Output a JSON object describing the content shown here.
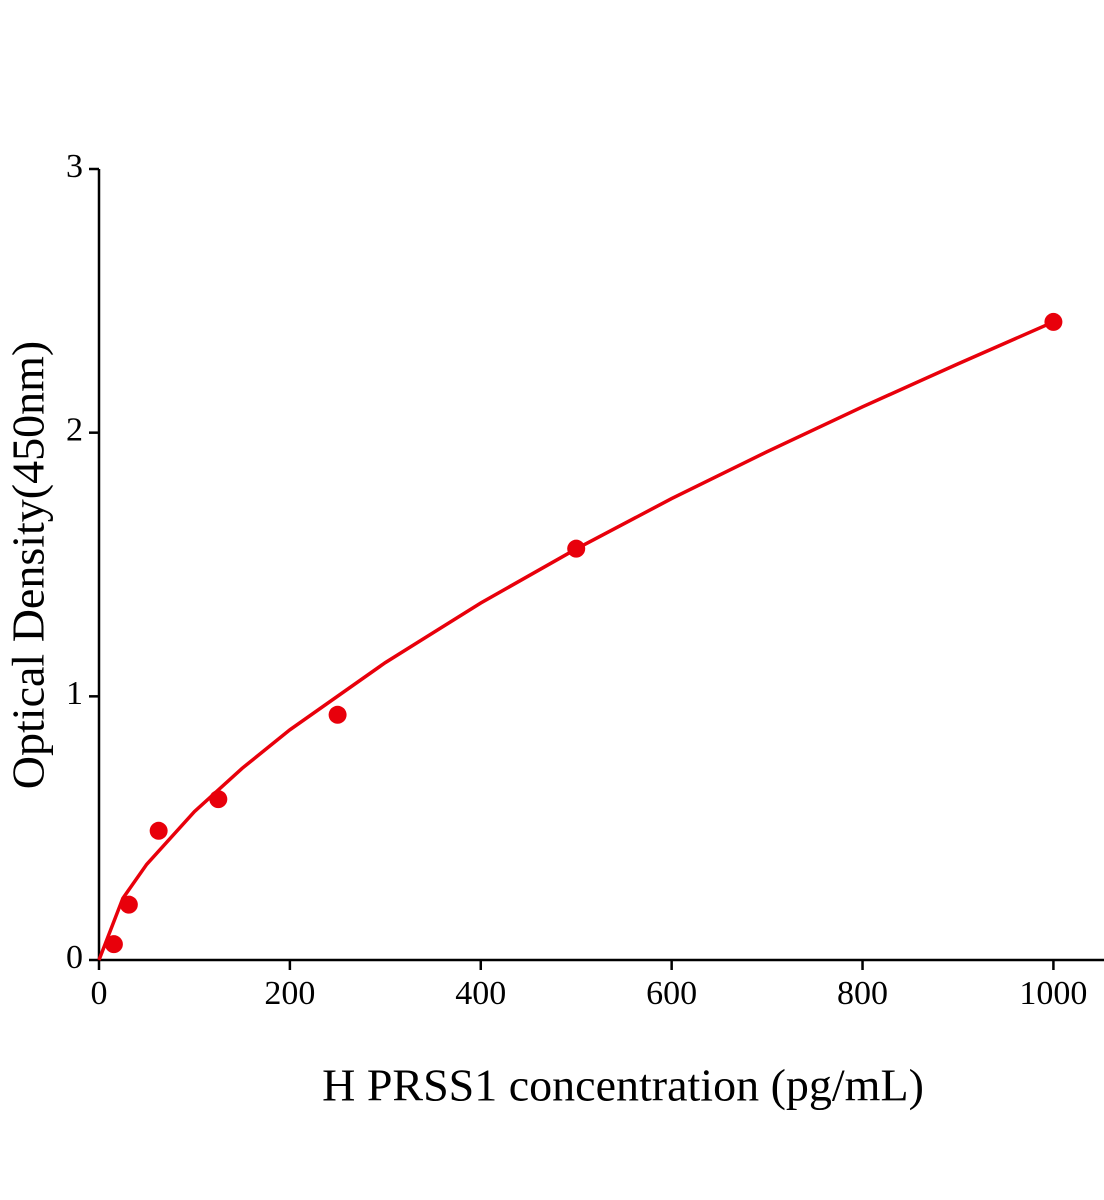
{
  "chart_data": {
    "type": "scatter",
    "x_label": "H PRSS1 concentration (pg/mL)",
    "y_label": "Optical Density(450nm)",
    "color": "#e8000b",
    "x": [
      15.6,
      31.25,
      62.5,
      125,
      250,
      500,
      1000
    ],
    "values": [
      0.06,
      0.21,
      0.49,
      0.61,
      0.93,
      1.56,
      2.42
    ],
    "fit": {
      "x": [
        0,
        25,
        50,
        100,
        150,
        200,
        300,
        400,
        500,
        600,
        700,
        800,
        900,
        1000
      ],
      "values": [
        0,
        0.234,
        0.363,
        0.563,
        0.727,
        0.873,
        1.128,
        1.354,
        1.559,
        1.75,
        1.928,
        2.098,
        2.261,
        2.42
      ]
    },
    "xlim": [
      0,
      1053
    ],
    "ylim": [
      0,
      3
    ],
    "xticks": [
      0,
      200,
      400,
      600,
      800,
      1000
    ],
    "yticks": [
      0,
      1,
      2,
      3
    ]
  }
}
